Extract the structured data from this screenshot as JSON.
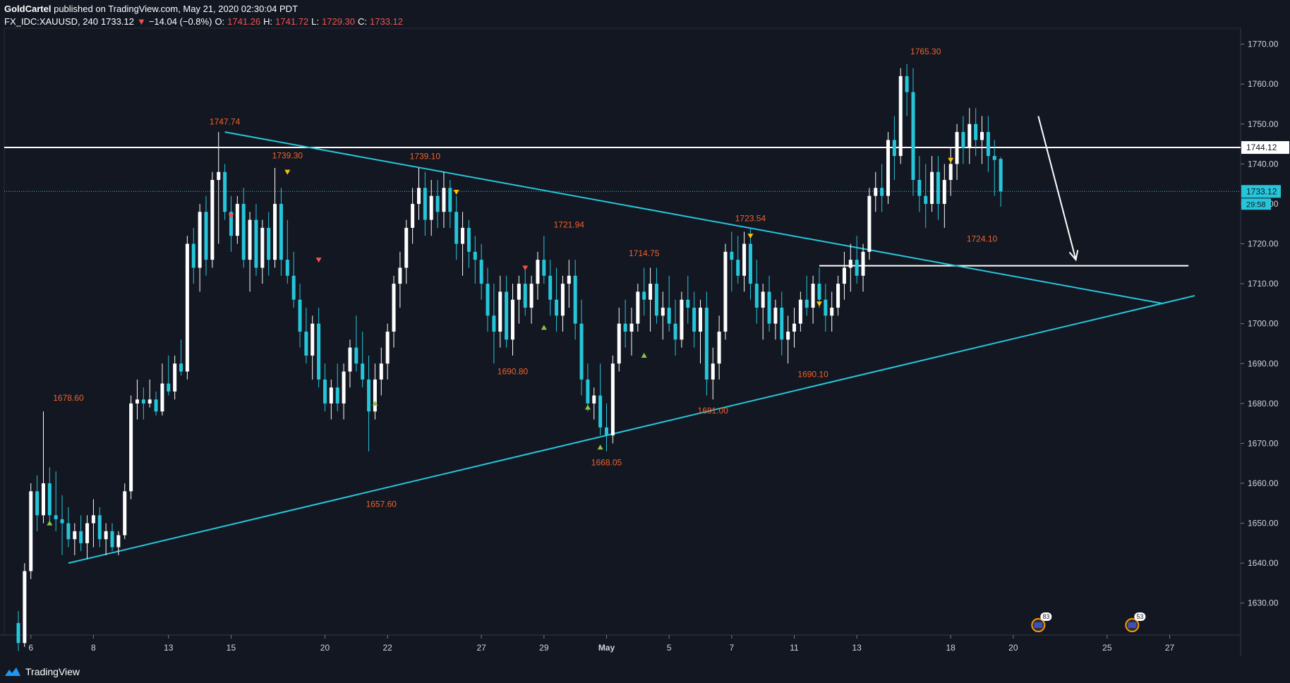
{
  "header": {
    "author": "GoldCartel",
    "published": "published on TradingView.com, May 21, 2020 02:30:04 PDT",
    "symbol": "FX_IDC:XAUUSD, 240",
    "last": "1733.12",
    "change": "−14.04 (−0.8%)",
    "o_label": "O:",
    "o_val": "1741.26",
    "h_label": "H:",
    "h_val": "1741.72",
    "l_label": "L:",
    "l_val": "1729.30",
    "c_label": "C:",
    "c_val": "1733.12"
  },
  "footer": {
    "brand": "TradingView"
  },
  "colors": {
    "background": "#131722",
    "up_candle": "#ffffff",
    "down_candle": "#26c6da",
    "trendline": "#26c6da",
    "level": "#ffffff",
    "annotation": "#f0622c",
    "marker_up": "#8bc34a",
    "marker_down_red": "#ef5350",
    "marker_down_yellow": "#ffc107"
  },
  "chart_data": {
    "type": "candlestick",
    "y_axis": {
      "min": 1622,
      "max": 1774,
      "ticks": [
        1770,
        1760,
        1750,
        1740,
        1730,
        1720,
        1710,
        1700,
        1690,
        1680,
        1670,
        1660,
        1650,
        1640,
        1630
      ],
      "tick_labels": [
        "1770.00",
        "1760.00",
        "1750.00",
        "1740.00",
        "1730.00",
        "1720.00",
        "1710.00",
        "1700.00",
        "1690.00",
        "1680.00",
        "1670.00",
        "1660.00",
        "1650.00",
        "1640.00",
        "1630.00"
      ]
    },
    "x_axis": {
      "min": 0,
      "max": 200,
      "labels": [
        {
          "t": 2,
          "text": "6"
        },
        {
          "t": 12,
          "text": "8"
        },
        {
          "t": 24,
          "text": "13"
        },
        {
          "t": 34,
          "text": "15"
        },
        {
          "t": 49,
          "text": "20"
        },
        {
          "t": 59,
          "text": "22"
        },
        {
          "t": 74,
          "text": "27"
        },
        {
          "t": 84,
          "text": "29"
        },
        {
          "t": 94,
          "text": "May"
        },
        {
          "t": 104,
          "text": "5"
        },
        {
          "t": 114,
          "text": "7"
        },
        {
          "t": 124,
          "text": "11"
        },
        {
          "t": 134,
          "text": "13"
        },
        {
          "t": 149,
          "text": "18"
        },
        {
          "t": 159,
          "text": "20"
        },
        {
          "t": 174,
          "text": "25"
        },
        {
          "t": 184,
          "text": "27"
        }
      ]
    },
    "candles": [
      [
        0,
        1625,
        1628,
        1618,
        1620
      ],
      [
        1,
        1620,
        1640,
        1619,
        1638
      ],
      [
        2,
        1638,
        1660,
        1636,
        1658
      ],
      [
        3,
        1658,
        1662,
        1648,
        1652
      ],
      [
        4,
        1652,
        1678,
        1650,
        1660
      ],
      [
        5,
        1660,
        1664,
        1650,
        1652
      ],
      [
        6,
        1652,
        1663,
        1648,
        1651
      ],
      [
        7,
        1651,
        1657,
        1642,
        1650
      ],
      [
        8,
        1650,
        1654,
        1644,
        1646
      ],
      [
        9,
        1646,
        1650,
        1642,
        1648
      ],
      [
        10,
        1648,
        1652,
        1643,
        1645
      ],
      [
        11,
        1645,
        1652,
        1641,
        1650
      ],
      [
        12,
        1650,
        1656,
        1644,
        1652
      ],
      [
        13,
        1652,
        1654,
        1644,
        1646
      ],
      [
        14,
        1646,
        1650,
        1642,
        1648
      ],
      [
        15,
        1648,
        1650,
        1643,
        1644
      ],
      [
        16,
        1644,
        1648,
        1642,
        1647
      ],
      [
        17,
        1647,
        1660,
        1646,
        1658
      ],
      [
        18,
        1658,
        1682,
        1656,
        1680
      ],
      [
        19,
        1680,
        1686,
        1676,
        1681
      ],
      [
        20,
        1681,
        1684,
        1676,
        1680
      ],
      [
        21,
        1680,
        1686,
        1679,
        1681
      ],
      [
        22,
        1681,
        1683,
        1677,
        1678
      ],
      [
        23,
        1678,
        1690,
        1677,
        1685
      ],
      [
        24,
        1685,
        1692,
        1682,
        1683
      ],
      [
        25,
        1683,
        1692,
        1681,
        1690
      ],
      [
        26,
        1690,
        1696,
        1687,
        1688
      ],
      [
        27,
        1688,
        1722,
        1686,
        1720
      ],
      [
        28,
        1720,
        1724,
        1710,
        1714
      ],
      [
        29,
        1714,
        1730,
        1708,
        1728
      ],
      [
        30,
        1728,
        1732,
        1712,
        1716
      ],
      [
        31,
        1716,
        1738,
        1714,
        1736
      ],
      [
        32,
        1736,
        1748,
        1720,
        1738
      ],
      [
        33,
        1738,
        1740,
        1726,
        1728
      ],
      [
        34,
        1728,
        1732,
        1718,
        1722
      ],
      [
        35,
        1722,
        1732,
        1720,
        1730
      ],
      [
        36,
        1730,
        1734,
        1714,
        1716
      ],
      [
        37,
        1716,
        1728,
        1708,
        1726
      ],
      [
        38,
        1726,
        1730,
        1712,
        1714
      ],
      [
        39,
        1714,
        1726,
        1710,
        1724
      ],
      [
        40,
        1724,
        1728,
        1712,
        1716
      ],
      [
        41,
        1716,
        1739,
        1714,
        1730
      ],
      [
        42,
        1730,
        1734,
        1712,
        1716
      ],
      [
        43,
        1716,
        1726,
        1710,
        1712
      ],
      [
        44,
        1712,
        1718,
        1704,
        1706
      ],
      [
        45,
        1706,
        1710,
        1694,
        1698
      ],
      [
        46,
        1698,
        1704,
        1690,
        1692
      ],
      [
        47,
        1692,
        1702,
        1686,
        1700
      ],
      [
        48,
        1700,
        1704,
        1684,
        1686
      ],
      [
        49,
        1686,
        1690,
        1678,
        1680
      ],
      [
        50,
        1680,
        1686,
        1676,
        1684
      ],
      [
        51,
        1684,
        1690,
        1678,
        1680
      ],
      [
        52,
        1680,
        1690,
        1676,
        1688
      ],
      [
        53,
        1688,
        1696,
        1684,
        1694
      ],
      [
        54,
        1694,
        1702,
        1688,
        1690
      ],
      [
        55,
        1690,
        1698,
        1684,
        1686
      ],
      [
        56,
        1686,
        1692,
        1668,
        1678
      ],
      [
        57,
        1678,
        1690,
        1676,
        1686
      ],
      [
        58,
        1686,
        1694,
        1682,
        1690
      ],
      [
        59,
        1690,
        1700,
        1686,
        1698
      ],
      [
        60,
        1698,
        1712,
        1694,
        1710
      ],
      [
        61,
        1710,
        1718,
        1704,
        1714
      ],
      [
        62,
        1714,
        1726,
        1710,
        1724
      ],
      [
        63,
        1724,
        1734,
        1720,
        1730
      ],
      [
        64,
        1730,
        1739,
        1726,
        1734
      ],
      [
        65,
        1734,
        1738,
        1722,
        1726
      ],
      [
        66,
        1726,
        1736,
        1722,
        1732
      ],
      [
        67,
        1732,
        1736,
        1724,
        1728
      ],
      [
        68,
        1728,
        1738,
        1724,
        1734
      ],
      [
        69,
        1734,
        1736,
        1724,
        1728
      ],
      [
        70,
        1728,
        1732,
        1716,
        1720
      ],
      [
        71,
        1720,
        1728,
        1712,
        1724
      ],
      [
        72,
        1724,
        1726,
        1714,
        1718
      ],
      [
        73,
        1718,
        1722,
        1710,
        1716
      ],
      [
        74,
        1716,
        1720,
        1706,
        1710
      ],
      [
        75,
        1710,
        1714,
        1698,
        1702
      ],
      [
        76,
        1702,
        1710,
        1690,
        1698
      ],
      [
        77,
        1698,
        1712,
        1694,
        1708
      ],
      [
        78,
        1708,
        1712,
        1694,
        1696
      ],
      [
        79,
        1696,
        1710,
        1692,
        1706
      ],
      [
        80,
        1706,
        1712,
        1700,
        1710
      ],
      [
        81,
        1710,
        1714,
        1702,
        1704
      ],
      [
        82,
        1704,
        1712,
        1700,
        1710
      ],
      [
        83,
        1710,
        1718,
        1706,
        1716
      ],
      [
        84,
        1716,
        1722,
        1710,
        1712
      ],
      [
        85,
        1712,
        1716,
        1702,
        1706
      ],
      [
        86,
        1706,
        1714,
        1698,
        1702
      ],
      [
        87,
        1702,
        1712,
        1698,
        1710
      ],
      [
        88,
        1710,
        1716,
        1704,
        1712
      ],
      [
        89,
        1712,
        1716,
        1696,
        1700
      ],
      [
        90,
        1700,
        1706,
        1682,
        1686
      ],
      [
        91,
        1686,
        1690,
        1678,
        1680
      ],
      [
        92,
        1680,
        1684,
        1676,
        1682
      ],
      [
        93,
        1682,
        1690,
        1672,
        1674
      ],
      [
        94,
        1674,
        1680,
        1668,
        1672
      ],
      [
        95,
        1672,
        1692,
        1670,
        1690
      ],
      [
        96,
        1690,
        1704,
        1688,
        1700
      ],
      [
        97,
        1700,
        1706,
        1694,
        1698
      ],
      [
        98,
        1698,
        1704,
        1692,
        1700
      ],
      [
        99,
        1700,
        1710,
        1698,
        1708
      ],
      [
        100,
        1708,
        1714,
        1702,
        1706
      ],
      [
        101,
        1706,
        1714,
        1698,
        1710
      ],
      [
        102,
        1710,
        1714,
        1700,
        1702
      ],
      [
        103,
        1702,
        1708,
        1696,
        1704
      ],
      [
        104,
        1704,
        1712,
        1698,
        1700
      ],
      [
        105,
        1700,
        1706,
        1692,
        1696
      ],
      [
        106,
        1696,
        1708,
        1694,
        1706
      ],
      [
        107,
        1706,
        1712,
        1700,
        1704
      ],
      [
        108,
        1704,
        1708,
        1694,
        1698
      ],
      [
        109,
        1698,
        1706,
        1690,
        1704
      ],
      [
        110,
        1704,
        1708,
        1682,
        1686
      ],
      [
        111,
        1686,
        1694,
        1681,
        1690
      ],
      [
        112,
        1690,
        1702,
        1686,
        1698
      ],
      [
        113,
        1698,
        1720,
        1696,
        1718
      ],
      [
        114,
        1718,
        1723,
        1708,
        1716
      ],
      [
        115,
        1716,
        1722,
        1710,
        1712
      ],
      [
        116,
        1712,
        1723,
        1708,
        1720
      ],
      [
        117,
        1720,
        1724,
        1706,
        1710
      ],
      [
        118,
        1710,
        1716,
        1700,
        1704
      ],
      [
        119,
        1704,
        1710,
        1696,
        1708
      ],
      [
        120,
        1708,
        1712,
        1698,
        1700
      ],
      [
        121,
        1700,
        1706,
        1696,
        1704
      ],
      [
        122,
        1704,
        1708,
        1692,
        1696
      ],
      [
        123,
        1696,
        1702,
        1690,
        1698
      ],
      [
        124,
        1698,
        1704,
        1694,
        1700
      ],
      [
        125,
        1700,
        1708,
        1698,
        1706
      ],
      [
        126,
        1706,
        1712,
        1702,
        1704
      ],
      [
        127,
        1704,
        1712,
        1700,
        1710
      ],
      [
        128,
        1710,
        1714,
        1704,
        1706
      ],
      [
        129,
        1706,
        1710,
        1698,
        1702
      ],
      [
        130,
        1702,
        1708,
        1698,
        1704
      ],
      [
        131,
        1704,
        1712,
        1702,
        1710
      ],
      [
        132,
        1710,
        1718,
        1706,
        1714
      ],
      [
        133,
        1714,
        1720,
        1708,
        1716
      ],
      [
        134,
        1716,
        1722,
        1710,
        1712
      ],
      [
        135,
        1712,
        1720,
        1708,
        1718
      ],
      [
        136,
        1718,
        1734,
        1716,
        1732
      ],
      [
        137,
        1732,
        1738,
        1728,
        1734
      ],
      [
        138,
        1734,
        1740,
        1728,
        1732
      ],
      [
        139,
        1732,
        1748,
        1730,
        1746
      ],
      [
        140,
        1746,
        1752,
        1736,
        1742
      ],
      [
        141,
        1742,
        1764,
        1740,
        1762
      ],
      [
        142,
        1762,
        1765,
        1752,
        1758
      ],
      [
        143,
        1758,
        1764,
        1732,
        1736
      ],
      [
        144,
        1736,
        1742,
        1728,
        1732
      ],
      [
        145,
        1732,
        1740,
        1724,
        1730
      ],
      [
        146,
        1730,
        1742,
        1728,
        1738
      ],
      [
        147,
        1738,
        1742,
        1726,
        1730
      ],
      [
        148,
        1730,
        1740,
        1724,
        1736
      ],
      [
        149,
        1736,
        1744,
        1732,
        1740
      ],
      [
        150,
        1740,
        1750,
        1736,
        1748
      ],
      [
        151,
        1748,
        1752,
        1740,
        1744
      ],
      [
        152,
        1744,
        1754,
        1740,
        1750
      ],
      [
        153,
        1750,
        1754,
        1742,
        1746
      ],
      [
        154,
        1746,
        1752,
        1740,
        1748
      ],
      [
        155,
        1748,
        1752,
        1738,
        1742
      ],
      [
        156,
        1742,
        1746,
        1732,
        1741
      ],
      [
        157,
        1741.26,
        1741.72,
        1729.3,
        1733.12
      ]
    ],
    "price_annotations": [
      {
        "t": 8,
        "price": 1678.6,
        "text": "1678.60",
        "pos": "above"
      },
      {
        "t": 33,
        "price": 1747.74,
        "text": "1747.74",
        "pos": "above"
      },
      {
        "t": 43,
        "price": 1739.3,
        "text": "1739.30",
        "pos": "above"
      },
      {
        "t": 58,
        "price": 1657.6,
        "text": "1657.60",
        "pos": "below"
      },
      {
        "t": 65,
        "price": 1739.1,
        "text": "1739.10",
        "pos": "above"
      },
      {
        "t": 79,
        "price": 1690.8,
        "text": "1690.80",
        "pos": "below"
      },
      {
        "t": 88,
        "price": 1721.94,
        "text": "1721.94",
        "pos": "above"
      },
      {
        "t": 94,
        "price": 1668.05,
        "text": "1668.05",
        "pos": "below"
      },
      {
        "t": 100,
        "price": 1714.75,
        "text": "1714.75",
        "pos": "above"
      },
      {
        "t": 111,
        "price": 1681.0,
        "text": "1681.00",
        "pos": "below"
      },
      {
        "t": 117,
        "price": 1723.54,
        "text": "1723.54",
        "pos": "above"
      },
      {
        "t": 127,
        "price": 1690.1,
        "text": "1690.10",
        "pos": "below"
      },
      {
        "t": 145,
        "price": 1765.3,
        "text": "1765.30",
        "pos": "above"
      },
      {
        "t": 154,
        "price": 1724.1,
        "text": "1724.10",
        "pos": "below"
      }
    ],
    "markers": [
      {
        "t": 5,
        "price": 1650,
        "dir": "up",
        "color": "#8bc34a"
      },
      {
        "t": 34,
        "price": 1727,
        "dir": "down",
        "color": "#ef5350"
      },
      {
        "t": 43,
        "price": 1738,
        "dir": "down",
        "color": "#ffc107"
      },
      {
        "t": 48,
        "price": 1716,
        "dir": "down",
        "color": "#ef5350"
      },
      {
        "t": 57,
        "price": 1680,
        "dir": "up",
        "color": "#8bc34a"
      },
      {
        "t": 70,
        "price": 1733,
        "dir": "down",
        "color": "#ffc107"
      },
      {
        "t": 81,
        "price": 1714,
        "dir": "down",
        "color": "#ef5350"
      },
      {
        "t": 84,
        "price": 1699,
        "dir": "up",
        "color": "#8bc34a"
      },
      {
        "t": 91,
        "price": 1679,
        "dir": "up",
        "color": "#8bc34a"
      },
      {
        "t": 93,
        "price": 1669,
        "dir": "up",
        "color": "#8bc34a"
      },
      {
        "t": 100,
        "price": 1692,
        "dir": "up",
        "color": "#8bc34a"
      },
      {
        "t": 117,
        "price": 1722,
        "dir": "down",
        "color": "#ffc107"
      },
      {
        "t": 128,
        "price": 1705,
        "dir": "down",
        "color": "#ffc107"
      },
      {
        "t": 149,
        "price": 1741,
        "dir": "down",
        "color": "#ffc107"
      }
    ],
    "trendlines": [
      {
        "t1": 33,
        "p1": 1748,
        "t2": 183,
        "p2": 1705
      },
      {
        "t1": 8,
        "p1": 1640,
        "t2": 188,
        "p2": 1707
      }
    ],
    "horizontal_lines": [
      {
        "price": 1744.12,
        "t_start": -5,
        "t_end": 200,
        "label": "1744.12"
      },
      {
        "price": 1714.5,
        "t_start": 128,
        "t_end": 187
      }
    ],
    "current_price": {
      "price": 1733.12,
      "label": "1733.12",
      "countdown": "29:58"
    },
    "projection_arrow": {
      "t1": 163,
      "p1": 1752,
      "t2": 169,
      "p2": 1716
    },
    "event_badges": [
      {
        "t": 163,
        "text": "83"
      },
      {
        "t": 178,
        "text": "53"
      }
    ]
  }
}
